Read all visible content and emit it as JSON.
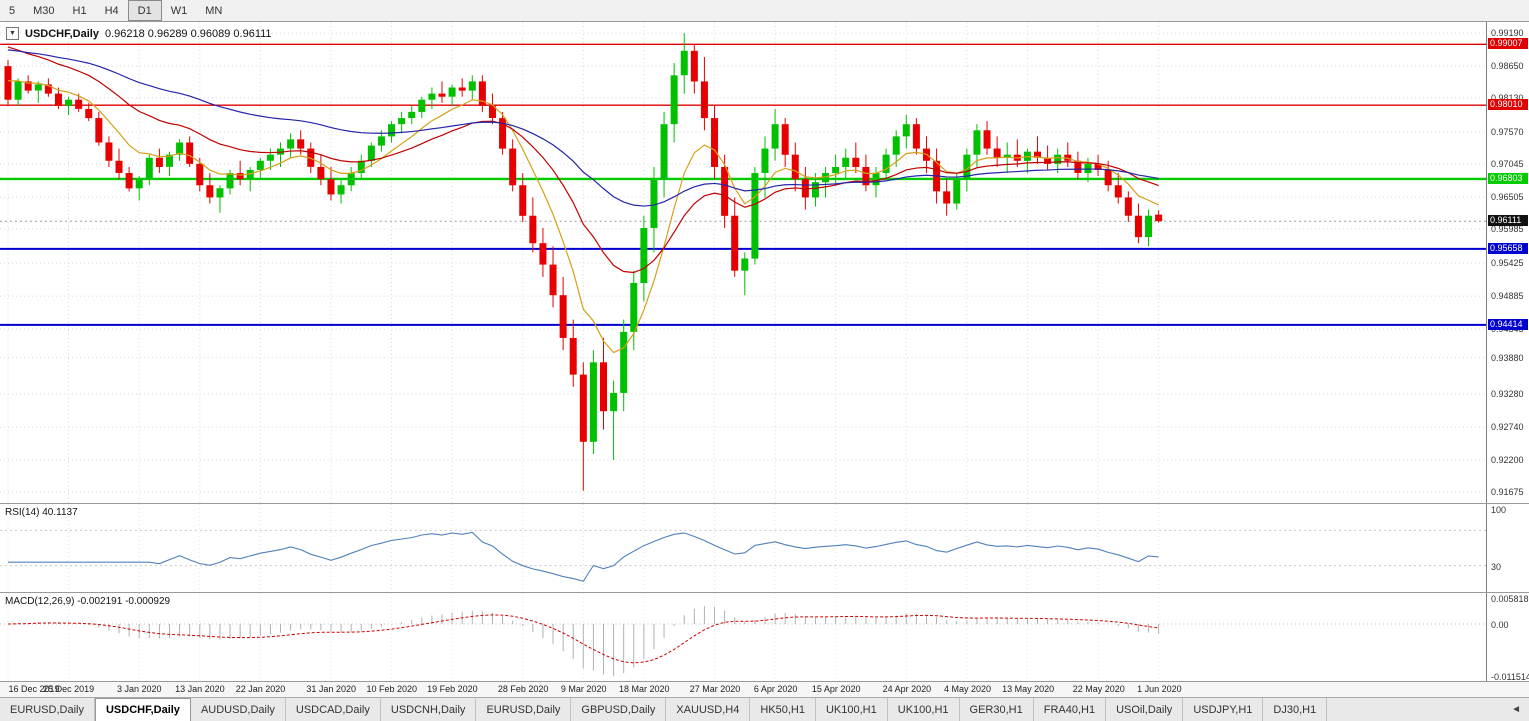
{
  "toolbar": {
    "timeframes": [
      {
        "label": "5",
        "active": false
      },
      {
        "label": "M30",
        "active": false
      },
      {
        "label": "H1",
        "active": false
      },
      {
        "label": "H4",
        "active": false
      },
      {
        "label": "D1",
        "active": true
      },
      {
        "label": "W1",
        "active": false
      },
      {
        "label": "MN",
        "active": false
      }
    ]
  },
  "chart": {
    "symbol": "USDCHF,Daily",
    "ohlc": "0.96218 0.96289 0.96089 0.96111",
    "dropdown_icon": "▼"
  },
  "chart_data": {
    "type": "candlestick",
    "title": "USDCHF,Daily",
    "open": 0.96218,
    "high": 0.96289,
    "low": 0.96089,
    "close": 0.96111,
    "price_range": {
      "max": 0.9937,
      "min": 0.915
    },
    "colors": {
      "bull": "#00c000",
      "bear": "#e60000",
      "grid": "#d8d8d8",
      "current_line": "#999999"
    },
    "price_axis": [
      {
        "label": "0.99190",
        "value": 0.9919
      },
      {
        "label": "0.98650",
        "value": 0.9865
      },
      {
        "label": "0.98130",
        "value": 0.9813
      },
      {
        "label": "0.97570",
        "value": 0.9757
      },
      {
        "label": "0.97045",
        "value": 0.97045
      },
      {
        "label": "0.96505",
        "value": 0.96505
      },
      {
        "label": "0.95985",
        "value": 0.95985
      },
      {
        "label": "0.95425",
        "value": 0.95425
      },
      {
        "label": "0.94885",
        "value": 0.94885
      },
      {
        "label": "0.94345",
        "value": 0.94345
      },
      {
        "label": "0.93880",
        "value": 0.9388
      },
      {
        "label": "0.93280",
        "value": 0.9328
      },
      {
        "label": "0.92740",
        "value": 0.9274
      },
      {
        "label": "0.92200",
        "value": 0.922
      },
      {
        "label": "0.91675",
        "value": 0.91675
      }
    ],
    "levels": [
      {
        "label": "0.99007",
        "value": 0.99007,
        "color": "#e00000",
        "width": 1.4
      },
      {
        "label": "0.98010",
        "value": 0.9801,
        "color": "#e00000",
        "width": 1.4
      },
      {
        "label": "0.96803",
        "value": 0.96803,
        "color": "#00cc00",
        "width": 2.4
      },
      {
        "label": "0.95658",
        "value": 0.95658,
        "color": "#0000d0",
        "width": 2
      },
      {
        "label": "0.94414",
        "value": 0.94414,
        "color": "#0000d0",
        "width": 2
      }
    ],
    "current_price": {
      "label": "0.96111",
      "value": 0.96111
    },
    "date_axis": [
      {
        "label": "16 Dec 2019",
        "bar": 0
      },
      {
        "label": "25 Dec 2019",
        "bar": 6
      },
      {
        "label": "3 Jan 2020",
        "bar": 13
      },
      {
        "label": "13 Jan 2020",
        "bar": 19
      },
      {
        "label": "22 Jan 2020",
        "bar": 25
      },
      {
        "label": "31 Jan 2020",
        "bar": 32
      },
      {
        "label": "10 Feb 2020",
        "bar": 38
      },
      {
        "label": "19 Feb 2020",
        "bar": 44
      },
      {
        "label": "28 Feb 2020",
        "bar": 51
      },
      {
        "label": "9 Mar 2020",
        "bar": 57
      },
      {
        "label": "18 Mar 2020",
        "bar": 63
      },
      {
        "label": "27 Mar 2020",
        "bar": 70
      },
      {
        "label": "6 Apr 2020",
        "bar": 76
      },
      {
        "label": "15 Apr 2020",
        "bar": 82
      },
      {
        "label": "24 Apr 2020",
        "bar": 89
      },
      {
        "label": "4 May 2020",
        "bar": 95
      },
      {
        "label": "13 May 2020",
        "bar": 101
      },
      {
        "label": "22 May 2020",
        "bar": 108
      },
      {
        "label": "1 Jun 2020",
        "bar": 114
      }
    ],
    "overlays": [
      {
        "name": "ma-fast-orange",
        "period": 8,
        "seed": 0.985,
        "color": "#d4a017"
      },
      {
        "name": "ma-mid-red",
        "period": 21,
        "seed": 0.9905,
        "color": "#c00000"
      },
      {
        "name": "ma-slow-blue",
        "period": 50,
        "seed": 0.9895,
        "color": "#2424aa"
      }
    ],
    "candles": [
      [
        0.9865,
        0.9875,
        0.98,
        0.981
      ],
      [
        0.981,
        0.9845,
        0.98,
        0.984
      ],
      [
        0.984,
        0.985,
        0.982,
        0.9825
      ],
      [
        0.9825,
        0.984,
        0.9805,
        0.9835
      ],
      [
        0.9835,
        0.9845,
        0.9815,
        0.982
      ],
      [
        0.982,
        0.983,
        0.9795,
        0.98
      ],
      [
        0.98,
        0.9815,
        0.9785,
        0.981
      ],
      [
        0.981,
        0.982,
        0.979,
        0.9795
      ],
      [
        0.9795,
        0.9805,
        0.9775,
        0.978
      ],
      [
        0.978,
        0.979,
        0.9735,
        0.974
      ],
      [
        0.974,
        0.975,
        0.97,
        0.971
      ],
      [
        0.971,
        0.973,
        0.968,
        0.969
      ],
      [
        0.969,
        0.97,
        0.966,
        0.9665
      ],
      [
        0.9665,
        0.9685,
        0.9645,
        0.968
      ],
      [
        0.968,
        0.972,
        0.967,
        0.9715
      ],
      [
        0.9715,
        0.973,
        0.969,
        0.97
      ],
      [
        0.97,
        0.9725,
        0.9685,
        0.972
      ],
      [
        0.972,
        0.9745,
        0.971,
        0.974
      ],
      [
        0.974,
        0.975,
        0.97,
        0.9705
      ],
      [
        0.9705,
        0.9715,
        0.966,
        0.967
      ],
      [
        0.967,
        0.969,
        0.964,
        0.965
      ],
      [
        0.965,
        0.967,
        0.9625,
        0.9665
      ],
      [
        0.9665,
        0.9695,
        0.9655,
        0.969
      ],
      [
        0.969,
        0.971,
        0.967,
        0.968
      ],
      [
        0.968,
        0.97,
        0.966,
        0.9695
      ],
      [
        0.9695,
        0.9715,
        0.968,
        0.971
      ],
      [
        0.971,
        0.973,
        0.9695,
        0.972
      ],
      [
        0.972,
        0.974,
        0.97,
        0.973
      ],
      [
        0.973,
        0.9755,
        0.9715,
        0.9745
      ],
      [
        0.9745,
        0.976,
        0.972,
        0.973
      ],
      [
        0.973,
        0.974,
        0.969,
        0.97
      ],
      [
        0.97,
        0.972,
        0.967,
        0.968
      ],
      [
        0.968,
        0.97,
        0.9645,
        0.9655
      ],
      [
        0.9655,
        0.968,
        0.964,
        0.967
      ],
      [
        0.967,
        0.97,
        0.966,
        0.969
      ],
      [
        0.969,
        0.972,
        0.968,
        0.971
      ],
      [
        0.971,
        0.974,
        0.97,
        0.9735
      ],
      [
        0.9735,
        0.976,
        0.9725,
        0.975
      ],
      [
        0.975,
        0.9775,
        0.974,
        0.977
      ],
      [
        0.977,
        0.979,
        0.9755,
        0.978
      ],
      [
        0.978,
        0.98,
        0.977,
        0.979
      ],
      [
        0.979,
        0.9815,
        0.978,
        0.981
      ],
      [
        0.981,
        0.983,
        0.9795,
        0.982
      ],
      [
        0.982,
        0.984,
        0.9805,
        0.9815
      ],
      [
        0.9815,
        0.9835,
        0.98,
        0.983
      ],
      [
        0.983,
        0.9845,
        0.9815,
        0.9825
      ],
      [
        0.9825,
        0.985,
        0.981,
        0.984
      ],
      [
        0.984,
        0.985,
        0.979,
        0.98
      ],
      [
        0.98,
        0.982,
        0.977,
        0.978
      ],
      [
        0.978,
        0.979,
        0.972,
        0.973
      ],
      [
        0.973,
        0.9745,
        0.966,
        0.967
      ],
      [
        0.967,
        0.969,
        0.961,
        0.962
      ],
      [
        0.962,
        0.965,
        0.956,
        0.9575
      ],
      [
        0.9575,
        0.96,
        0.952,
        0.954
      ],
      [
        0.954,
        0.957,
        0.947,
        0.949
      ],
      [
        0.949,
        0.952,
        0.94,
        0.942
      ],
      [
        0.942,
        0.945,
        0.934,
        0.936
      ],
      [
        0.936,
        0.938,
        0.917,
        0.925
      ],
      [
        0.925,
        0.94,
        0.923,
        0.938
      ],
      [
        0.938,
        0.942,
        0.927,
        0.93
      ],
      [
        0.93,
        0.935,
        0.922,
        0.933
      ],
      [
        0.933,
        0.945,
        0.93,
        0.943
      ],
      [
        0.943,
        0.953,
        0.94,
        0.951
      ],
      [
        0.951,
        0.962,
        0.948,
        0.96
      ],
      [
        0.96,
        0.97,
        0.956,
        0.968
      ],
      [
        0.968,
        0.979,
        0.965,
        0.977
      ],
      [
        0.977,
        0.987,
        0.974,
        0.985
      ],
      [
        0.985,
        0.9919,
        0.982,
        0.989
      ],
      [
        0.989,
        0.99,
        0.982,
        0.984
      ],
      [
        0.984,
        0.988,
        0.976,
        0.978
      ],
      [
        0.978,
        0.98,
        0.968,
        0.97
      ],
      [
        0.97,
        0.972,
        0.96,
        0.962
      ],
      [
        0.962,
        0.965,
        0.952,
        0.953
      ],
      [
        0.953,
        0.956,
        0.949,
        0.955
      ],
      [
        0.955,
        0.97,
        0.954,
        0.969
      ],
      [
        0.969,
        0.975,
        0.965,
        0.973
      ],
      [
        0.973,
        0.9795,
        0.971,
        0.977
      ],
      [
        0.977,
        0.978,
        0.97,
        0.972
      ],
      [
        0.972,
        0.974,
        0.966,
        0.968
      ],
      [
        0.968,
        0.97,
        0.963,
        0.965
      ],
      [
        0.965,
        0.969,
        0.9635,
        0.9675
      ],
      [
        0.9675,
        0.97,
        0.965,
        0.969
      ],
      [
        0.969,
        0.972,
        0.967,
        0.97
      ],
      [
        0.97,
        0.973,
        0.968,
        0.9715
      ],
      [
        0.9715,
        0.974,
        0.969,
        0.97
      ],
      [
        0.97,
        0.972,
        0.966,
        0.967
      ],
      [
        0.967,
        0.97,
        0.965,
        0.969
      ],
      [
        0.969,
        0.973,
        0.968,
        0.972
      ],
      [
        0.972,
        0.976,
        0.97,
        0.975
      ],
      [
        0.975,
        0.9785,
        0.973,
        0.977
      ],
      [
        0.977,
        0.978,
        0.972,
        0.973
      ],
      [
        0.973,
        0.975,
        0.969,
        0.971
      ],
      [
        0.971,
        0.973,
        0.964,
        0.966
      ],
      [
        0.966,
        0.968,
        0.962,
        0.964
      ],
      [
        0.964,
        0.969,
        0.963,
        0.968
      ],
      [
        0.968,
        0.973,
        0.966,
        0.972
      ],
      [
        0.972,
        0.977,
        0.97,
        0.976
      ],
      [
        0.976,
        0.9775,
        0.972,
        0.973
      ],
      [
        0.973,
        0.975,
        0.97,
        0.9715
      ],
      [
        0.9715,
        0.974,
        0.969,
        0.972
      ],
      [
        0.972,
        0.9745,
        0.97,
        0.971
      ],
      [
        0.971,
        0.973,
        0.969,
        0.9725
      ],
      [
        0.9725,
        0.975,
        0.9705,
        0.9715
      ],
      [
        0.9715,
        0.9735,
        0.9695,
        0.9705
      ],
      [
        0.9705,
        0.973,
        0.969,
        0.972
      ],
      [
        0.972,
        0.974,
        0.97,
        0.971
      ],
      [
        0.971,
        0.9725,
        0.968,
        0.969
      ],
      [
        0.969,
        0.9715,
        0.9675,
        0.9705
      ],
      [
        0.9705,
        0.972,
        0.9685,
        0.9695
      ],
      [
        0.9695,
        0.971,
        0.966,
        0.967
      ],
      [
        0.967,
        0.969,
        0.964,
        0.965
      ],
      [
        0.965,
        0.966,
        0.961,
        0.962
      ],
      [
        0.962,
        0.964,
        0.9575,
        0.9585
      ],
      [
        0.9585,
        0.963,
        0.957,
        0.962
      ],
      [
        0.96218,
        0.96289,
        0.96089,
        0.96111
      ]
    ]
  },
  "rsi": {
    "label": "RSI(14) 40.1137",
    "period": 14,
    "color": "#4f81bd",
    "range": [
      0,
      100
    ],
    "level_lines": [
      70,
      30
    ],
    "axis_labels": [
      {
        "label": "100",
        "value": 100
      },
      {
        "label": "30",
        "value": 30
      }
    ]
  },
  "macd": {
    "label": "MACD(12,26,9) -0.002191 -0.000929",
    "fast": 12,
    "slow": 26,
    "signal": 9,
    "hist_color": "#b0b0b0",
    "signal_color": "#d00000",
    "range": [
      -0.0125,
      0.0068
    ],
    "axis_labels": [
      {
        "label": "0.005818",
        "value": 0.005818
      },
      {
        "label": "0.00",
        "value": 0
      },
      {
        "label": "-0.011514",
        "value": -0.011514
      }
    ]
  },
  "tabs": {
    "scroll_left_icon": "◄",
    "items": [
      {
        "label": "EURUSD,Daily",
        "active": false
      },
      {
        "label": "USDCHF,Daily",
        "active": true
      },
      {
        "label": "AUDUSD,Daily",
        "active": false
      },
      {
        "label": "USDCAD,Daily",
        "active": false
      },
      {
        "label": "USDCNH,Daily",
        "active": false
      },
      {
        "label": "EURUSD,Daily",
        "active": false
      },
      {
        "label": "GBPUSD,Daily",
        "active": false
      },
      {
        "label": "XAUUSD,H4",
        "active": false
      },
      {
        "label": "HK50,H1",
        "active": false
      },
      {
        "label": "UK100,H1",
        "active": false
      },
      {
        "label": "UK100,H1",
        "active": false
      },
      {
        "label": "GER30,H1",
        "active": false
      },
      {
        "label": "FRA40,H1",
        "active": false
      },
      {
        "label": "USOil,Daily",
        "active": false
      },
      {
        "label": "USDJPY,H1",
        "active": false
      },
      {
        "label": "DJ30,H1",
        "active": false
      }
    ]
  }
}
